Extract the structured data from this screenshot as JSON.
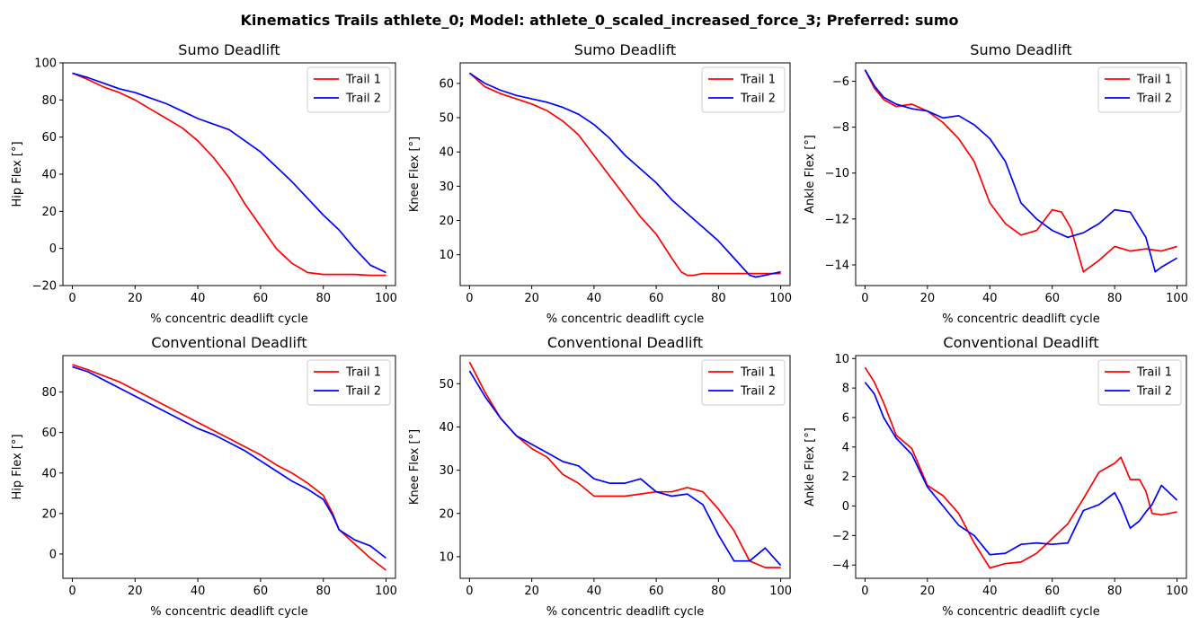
{
  "figure": {
    "suptitle": "Kinematics Trails athlete_0; Model: athlete_0_scaled_increased_force_3; Preferred: sumo"
  },
  "colors": {
    "trail1": "#ff0000",
    "trail2": "#0000ff"
  },
  "chart_data": [
    {
      "type": "line",
      "title": "Sumo Deadlift",
      "xlabel": "% concentric deadlift cycle",
      "ylabel": "Hip Flex [°]",
      "xlim": [
        -3,
        103
      ],
      "ylim": [
        -20,
        100
      ],
      "xticks": [
        0,
        20,
        40,
        60,
        80,
        100
      ],
      "yticks": [
        -20,
        0,
        20,
        40,
        60,
        80,
        100
      ],
      "legend": "top-right",
      "series": [
        {
          "name": "Trail 1",
          "x": [
            0,
            5,
            10,
            15,
            20,
            25,
            30,
            35,
            40,
            45,
            50,
            55,
            60,
            65,
            70,
            75,
            80,
            85,
            90,
            95,
            100
          ],
          "y": [
            94.5,
            91,
            87,
            84,
            80,
            75,
            70,
            65,
            58,
            49,
            38,
            24,
            12,
            0,
            -8,
            -13,
            -14,
            -14,
            -14,
            -14.5,
            -14.5
          ]
        },
        {
          "name": "Trail 2",
          "x": [
            0,
            5,
            10,
            15,
            20,
            25,
            30,
            35,
            40,
            45,
            50,
            55,
            60,
            65,
            70,
            75,
            80,
            85,
            90,
            95,
            100
          ],
          "y": [
            94.5,
            92,
            89,
            86,
            84,
            81,
            78,
            74,
            70,
            67,
            64,
            58,
            52,
            44,
            36,
            27,
            18,
            10,
            0,
            -9,
            -13
          ]
        }
      ]
    },
    {
      "type": "line",
      "title": "Sumo Deadlift",
      "xlabel": "% concentric deadlift cycle",
      "ylabel": "Knee Flex [°]",
      "xlim": [
        -3,
        103
      ],
      "ylim": [
        1,
        66
      ],
      "xticks": [
        0,
        20,
        40,
        60,
        80,
        100
      ],
      "yticks": [
        10,
        20,
        30,
        40,
        50,
        60
      ],
      "legend": "top-right",
      "series": [
        {
          "name": "Trail 1",
          "x": [
            0,
            5,
            10,
            15,
            20,
            25,
            30,
            35,
            40,
            45,
            50,
            55,
            60,
            65,
            68,
            70,
            72,
            75,
            80,
            85,
            90,
            95,
            100
          ],
          "y": [
            63,
            59,
            57,
            55.5,
            54,
            52,
            49,
            45,
            39,
            33,
            27,
            21,
            16,
            9,
            5,
            4,
            4,
            4.5,
            4.5,
            4.5,
            4.5,
            4.5,
            4.5
          ]
        },
        {
          "name": "Trail 2",
          "x": [
            0,
            5,
            10,
            15,
            20,
            25,
            30,
            35,
            40,
            45,
            50,
            55,
            60,
            65,
            70,
            75,
            80,
            85,
            90,
            92,
            95,
            100
          ],
          "y": [
            63,
            60,
            58,
            56.5,
            55.5,
            54.5,
            53,
            51,
            48,
            44,
            39,
            35,
            31,
            26,
            22,
            18,
            14,
            9,
            4,
            3.5,
            4,
            5
          ]
        }
      ]
    },
    {
      "type": "line",
      "title": "Sumo Deadlift",
      "xlabel": "% concentric deadlift cycle",
      "ylabel": "Ankle Flex [°]",
      "xlim": [
        -3,
        103
      ],
      "ylim": [
        -14.9,
        -5.2
      ],
      "xticks": [
        0,
        20,
        40,
        60,
        80,
        100
      ],
      "yticks": [
        -14,
        -12,
        -10,
        -8,
        -6
      ],
      "legend": "top-right",
      "series": [
        {
          "name": "Trail 1",
          "x": [
            0,
            3,
            6,
            10,
            15,
            20,
            25,
            30,
            35,
            40,
            45,
            50,
            55,
            60,
            63,
            66,
            70,
            75,
            80,
            85,
            90,
            95,
            100
          ],
          "y": [
            -5.5,
            -6.3,
            -6.8,
            -7.1,
            -7.0,
            -7.3,
            -7.8,
            -8.5,
            -9.5,
            -11.3,
            -12.2,
            -12.7,
            -12.5,
            -11.6,
            -11.7,
            -12.4,
            -14.3,
            -13.8,
            -13.2,
            -13.4,
            -13.3,
            -13.4,
            -13.2
          ]
        },
        {
          "name": "Trail 2",
          "x": [
            0,
            3,
            6,
            10,
            15,
            20,
            25,
            30,
            35,
            40,
            45,
            50,
            55,
            60,
            65,
            70,
            75,
            80,
            85,
            90,
            93,
            95,
            100
          ],
          "y": [
            -5.5,
            -6.2,
            -6.7,
            -7.0,
            -7.2,
            -7.3,
            -7.6,
            -7.5,
            -7.9,
            -8.5,
            -9.5,
            -11.3,
            -12.0,
            -12.5,
            -12.8,
            -12.6,
            -12.2,
            -11.6,
            -11.7,
            -12.8,
            -14.3,
            -14.1,
            -13.7
          ]
        }
      ]
    },
    {
      "type": "line",
      "title": "Conventional Deadlift",
      "xlabel": "% concentric deadlift cycle",
      "ylabel": "Hip Flex [°]",
      "xlim": [
        -3,
        103
      ],
      "ylim": [
        -12,
        98
      ],
      "xticks": [
        0,
        20,
        40,
        60,
        80,
        100
      ],
      "yticks": [
        0,
        20,
        40,
        60,
        80
      ],
      "legend": "top-right",
      "series": [
        {
          "name": "Trail 1",
          "x": [
            0,
            5,
            10,
            15,
            20,
            25,
            30,
            35,
            40,
            45,
            50,
            55,
            60,
            65,
            70,
            75,
            80,
            83,
            85,
            90,
            95,
            100
          ],
          "y": [
            93.5,
            91,
            88,
            85,
            81,
            77,
            73,
            69,
            65,
            61,
            57,
            53,
            49,
            44,
            40,
            35,
            29,
            20,
            12,
            5,
            -2,
            -8
          ]
        },
        {
          "name": "Trail 2",
          "x": [
            0,
            5,
            10,
            15,
            20,
            25,
            30,
            35,
            40,
            45,
            50,
            55,
            60,
            65,
            70,
            75,
            80,
            83,
            85,
            90,
            95,
            100
          ],
          "y": [
            92.5,
            90,
            86,
            82,
            78,
            74,
            70,
            66,
            62,
            59,
            55,
            51,
            46,
            41,
            36,
            32,
            27,
            19,
            12,
            7,
            4,
            -2
          ]
        }
      ]
    },
    {
      "type": "line",
      "title": "Conventional Deadlift",
      "xlabel": "% concentric deadlift cycle",
      "ylabel": "Knee Flex [°]",
      "xlim": [
        -3,
        103
      ],
      "ylim": [
        5,
        56.5
      ],
      "xticks": [
        0,
        20,
        40,
        60,
        80,
        100
      ],
      "yticks": [
        10,
        20,
        30,
        40,
        50
      ],
      "legend": "top-right",
      "series": [
        {
          "name": "Trail 1",
          "x": [
            0,
            5,
            10,
            15,
            20,
            25,
            30,
            35,
            40,
            45,
            50,
            55,
            60,
            65,
            70,
            75,
            80,
            85,
            90,
            95,
            100
          ],
          "y": [
            55,
            48,
            42,
            38,
            35,
            33,
            29,
            27,
            24,
            24,
            24,
            24.5,
            25,
            25,
            26,
            25,
            21,
            16,
            9,
            7.5,
            7.5
          ]
        },
        {
          "name": "Trail 2",
          "x": [
            0,
            5,
            10,
            15,
            20,
            25,
            30,
            35,
            40,
            45,
            50,
            55,
            60,
            65,
            70,
            75,
            80,
            85,
            90,
            95,
            100
          ],
          "y": [
            53,
            47,
            42,
            38,
            36,
            34,
            32,
            31,
            28,
            27,
            27,
            28,
            25,
            24,
            24.5,
            22,
            15,
            9,
            9,
            12,
            8
          ]
        }
      ]
    },
    {
      "type": "line",
      "title": "Conventional Deadlift",
      "xlabel": "% concentric deadlift cycle",
      "ylabel": "Ankle Flex [°]",
      "xlim": [
        -3,
        103
      ],
      "ylim": [
        -4.9,
        10.2
      ],
      "xticks": [
        0,
        20,
        40,
        60,
        80,
        100
      ],
      "yticks": [
        -4,
        -2,
        0,
        2,
        4,
        6,
        8,
        10
      ],
      "legend": "top-right",
      "series": [
        {
          "name": "Trail 1",
          "x": [
            0,
            3,
            6,
            10,
            15,
            20,
            25,
            30,
            35,
            40,
            45,
            50,
            55,
            60,
            65,
            70,
            75,
            80,
            82,
            85,
            88,
            90,
            92,
            95,
            100
          ],
          "y": [
            9.4,
            8.4,
            7,
            4.8,
            3.9,
            1.4,
            0.7,
            -0.5,
            -2.5,
            -4.2,
            -3.9,
            -3.8,
            -3.2,
            -2.2,
            -1.2,
            0.5,
            2.3,
            2.9,
            3.3,
            1.8,
            1.8,
            1,
            -0.5,
            -0.6,
            -0.4
          ]
        },
        {
          "name": "Trail 2",
          "x": [
            0,
            3,
            6,
            10,
            15,
            20,
            25,
            30,
            35,
            40,
            45,
            50,
            55,
            60,
            65,
            70,
            75,
            80,
            82,
            85,
            88,
            90,
            92,
            95,
            100
          ],
          "y": [
            8.4,
            7.6,
            6,
            4.6,
            3.5,
            1.3,
            0,
            -1.3,
            -2,
            -3.3,
            -3.2,
            -2.6,
            -2.5,
            -2.6,
            -2.5,
            -0.3,
            0.1,
            0.9,
            0.1,
            -1.5,
            -1,
            -0.4,
            0.1,
            1.4,
            0.4
          ]
        }
      ]
    }
  ]
}
